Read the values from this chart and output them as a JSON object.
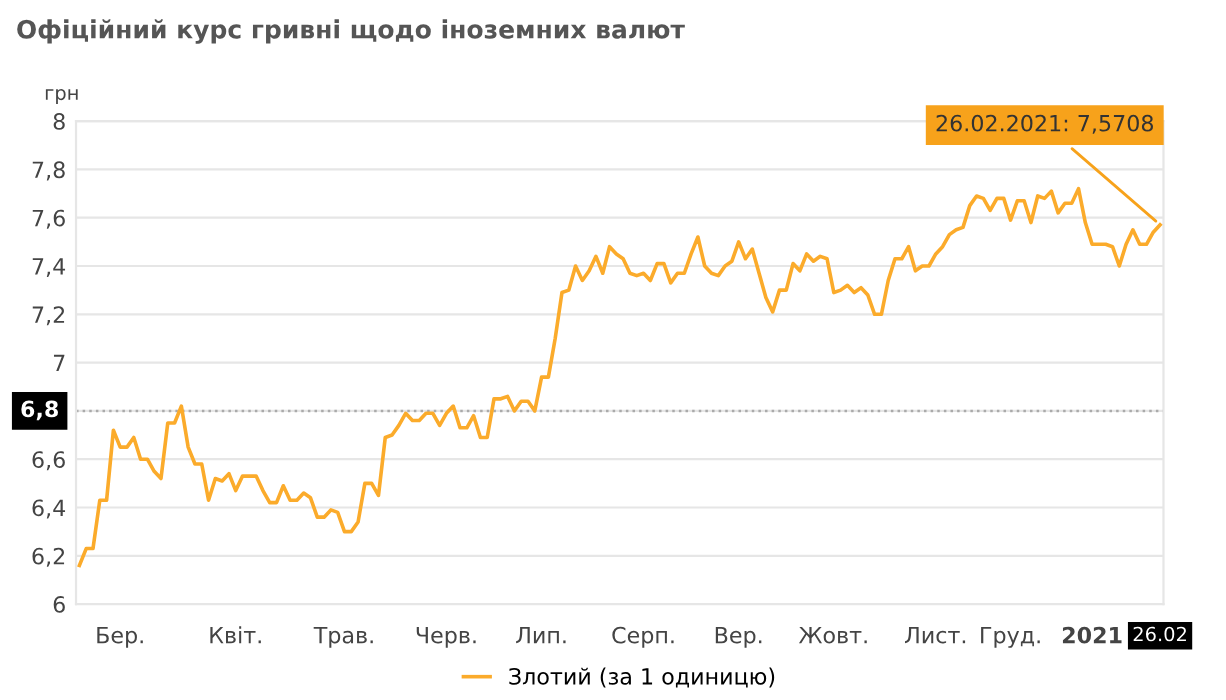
{
  "chart_data": {
    "type": "line",
    "title": "Офіційний курс гривні щодо іноземних валют",
    "ylabel": "грн",
    "categories": [
      null,
      null,
      null,
      null,
      null,
      null,
      "Бер.",
      null,
      null,
      null,
      null,
      null,
      null,
      null,
      null,
      null,
      null,
      null,
      null,
      null,
      null,
      null,
      null,
      "Квіт.",
      null,
      null,
      null,
      null,
      null,
      null,
      null,
      null,
      null,
      null,
      null,
      null,
      null,
      null,
      null,
      "Трав.",
      null,
      null,
      null,
      null,
      null,
      null,
      null,
      null,
      null,
      null,
      null,
      null,
      null,
      null,
      "Черв.",
      null,
      null,
      null,
      null,
      null,
      null,
      null,
      null,
      null,
      null,
      null,
      null,
      null,
      "Лип.",
      null,
      null,
      null,
      null,
      null,
      null,
      null,
      null,
      null,
      null,
      null,
      null,
      null,
      null,
      "Серп.",
      null,
      null,
      null,
      null,
      null,
      null,
      null,
      null,
      null,
      null,
      null,
      null,
      null,
      "Вер.",
      null,
      null,
      null,
      null,
      null,
      null,
      null,
      null,
      null,
      null,
      null,
      null,
      null,
      "Жовт.",
      null,
      null,
      null,
      null,
      null,
      null,
      null,
      null,
      null,
      null,
      null,
      null,
      null,
      null,
      "Лист.",
      null,
      null,
      null,
      null,
      null,
      null,
      null,
      null,
      null,
      null,
      "Груд.",
      null,
      null,
      null,
      null,
      null,
      null,
      null,
      null,
      null,
      null,
      null,
      "2021",
      null,
      null,
      null,
      null,
      null,
      null,
      null,
      null,
      null,
      "26.02"
    ],
    "series": [
      {
        "name": "Злотий (за 1 одиницю)",
        "color": "#fbab2b",
        "values": [
          6.16,
          6.23,
          6.23,
          6.43,
          6.43,
          6.72,
          6.65,
          6.65,
          6.69,
          6.6,
          6.6,
          6.55,
          6.52,
          6.75,
          6.75,
          6.82,
          6.65,
          6.58,
          6.58,
          6.43,
          6.52,
          6.51,
          6.54,
          6.47,
          6.53,
          6.53,
          6.53,
          6.47,
          6.42,
          6.42,
          6.49,
          6.43,
          6.43,
          6.46,
          6.44,
          6.36,
          6.36,
          6.39,
          6.38,
          6.3,
          6.3,
          6.34,
          6.5,
          6.5,
          6.45,
          6.69,
          6.7,
          6.74,
          6.79,
          6.76,
          6.76,
          6.79,
          6.79,
          6.74,
          6.79,
          6.82,
          6.73,
          6.73,
          6.78,
          6.69,
          6.69,
          6.85,
          6.85,
          6.86,
          6.8,
          6.84,
          6.84,
          6.8,
          6.94,
          6.94,
          7.1,
          7.29,
          7.3,
          7.4,
          7.34,
          7.38,
          7.44,
          7.37,
          7.48,
          7.45,
          7.43,
          7.37,
          7.36,
          7.37,
          7.34,
          7.41,
          7.41,
          7.33,
          7.37,
          7.37,
          7.45,
          7.52,
          7.4,
          7.37,
          7.36,
          7.4,
          7.42,
          7.5,
          7.43,
          7.47,
          7.37,
          7.27,
          7.21,
          7.3,
          7.3,
          7.41,
          7.38,
          7.45,
          7.42,
          7.44,
          7.43,
          7.29,
          7.3,
          7.32,
          7.29,
          7.31,
          7.28,
          7.2,
          7.2,
          7.34,
          7.43,
          7.43,
          7.48,
          7.38,
          7.4,
          7.4,
          7.45,
          7.48,
          7.53,
          7.55,
          7.56,
          7.65,
          7.69,
          7.68,
          7.63,
          7.68,
          7.68,
          7.59,
          7.67,
          7.67,
          7.58,
          7.69,
          7.68,
          7.71,
          7.62,
          7.66,
          7.66,
          7.72,
          7.58,
          7.49,
          7.49,
          7.49,
          7.48,
          7.4,
          7.49,
          7.55,
          7.49,
          7.49,
          7.54,
          7.5708
        ]
      }
    ],
    "ylim": [
      6,
      8
    ],
    "yticks": [
      6,
      {
        "value": 6.2,
        "label": "6,2"
      },
      {
        "value": 6.4,
        "label": "6,4"
      },
      {
        "value": 6.6,
        "label": "6,6"
      },
      {
        "value": 6.8,
        "label": null
      },
      7,
      {
        "value": 7.2,
        "label": "7,2"
      },
      {
        "value": 7.4,
        "label": "7,4"
      },
      {
        "value": 7.6,
        "label": "7,6"
      },
      {
        "value": 7.8,
        "label": "7,8"
      },
      8
    ],
    "grid": "y",
    "legend": "bottom",
    "line_style": "solid",
    "ref_lines": [
      {
        "axis": "y",
        "value": 6.8,
        "label": "6,8",
        "color": "#aaaaaa",
        "line_style": "dotted"
      }
    ],
    "annotations": [
      {
        "text": "26.02.2021: 7,5708",
        "x": "26.02",
        "y": 7.5708
      }
    ]
  }
}
